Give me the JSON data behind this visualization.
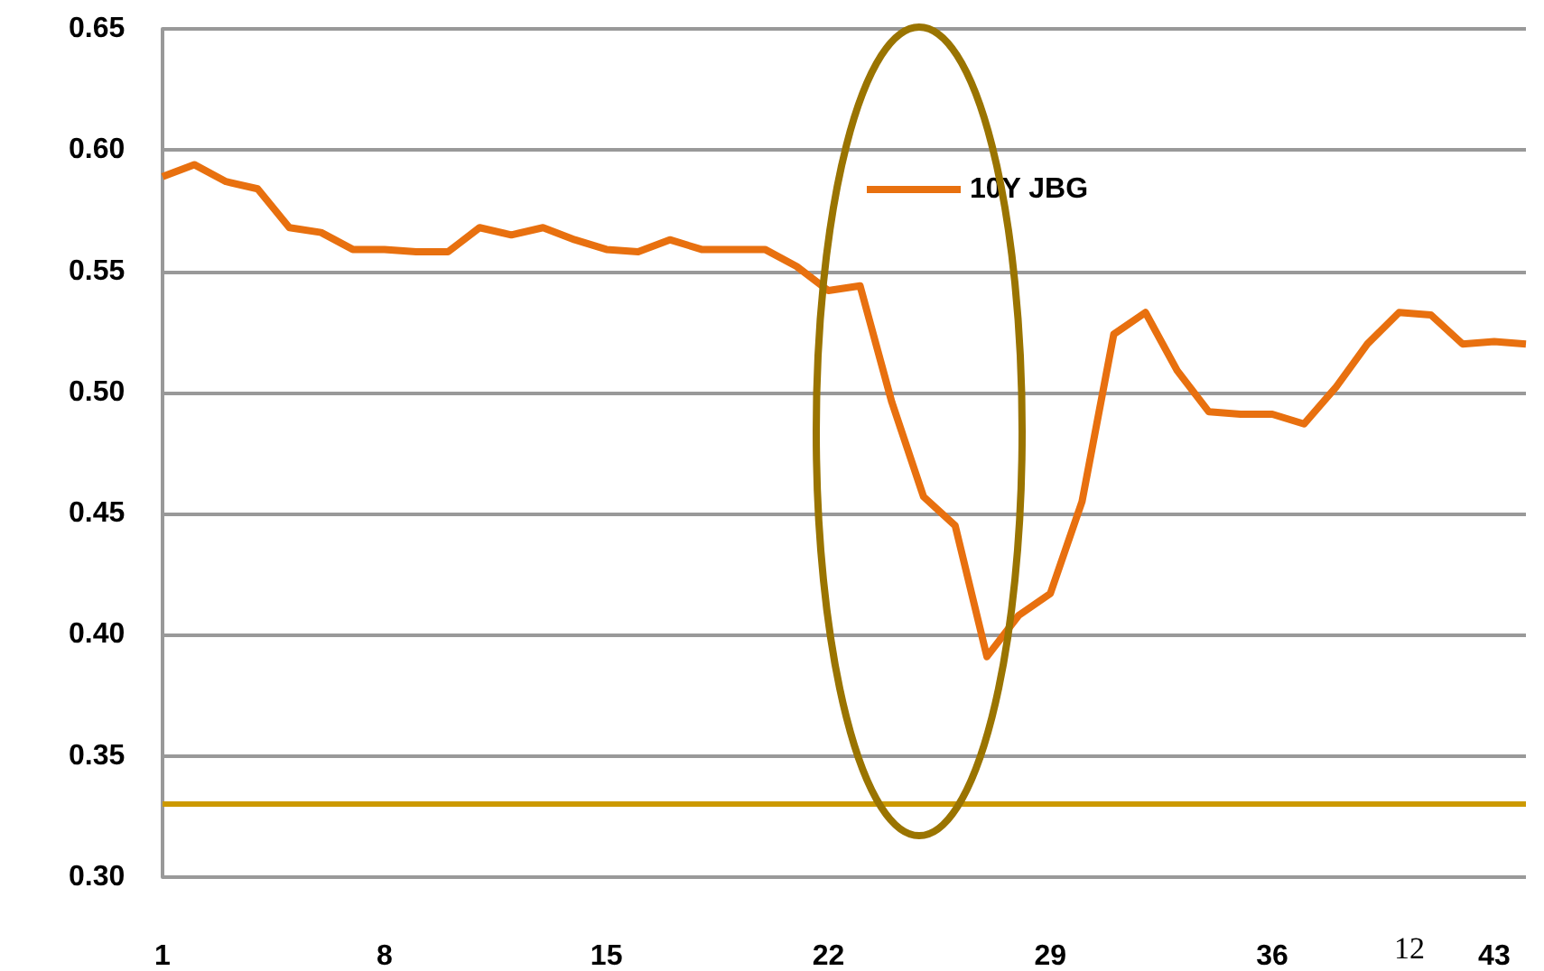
{
  "chart_data": {
    "type": "line",
    "categories": [
      "1",
      null,
      null,
      null,
      null,
      null,
      null,
      "8",
      null,
      null,
      null,
      null,
      null,
      null,
      "15",
      null,
      null,
      null,
      null,
      null,
      null,
      "22",
      null,
      null,
      null,
      null,
      null,
      null,
      "29",
      null,
      null,
      null,
      null,
      null,
      null,
      "36",
      null,
      null,
      null,
      null,
      null,
      null,
      "43",
      null
    ],
    "series": [
      {
        "name": "10Y JBG",
        "color": "#e8700f",
        "values": [
          0.589,
          0.594,
          0.587,
          0.584,
          0.568,
          0.566,
          0.559,
          0.559,
          0.558,
          0.558,
          0.568,
          0.565,
          0.568,
          0.563,
          0.559,
          0.558,
          0.563,
          0.559,
          0.559,
          0.559,
          0.552,
          0.542,
          0.544,
          0.496,
          0.457,
          0.445,
          0.391,
          0.408,
          0.417,
          0.455,
          0.524,
          0.533,
          0.509,
          0.492,
          0.491,
          0.491,
          0.487,
          0.502,
          0.52,
          0.533,
          0.532,
          0.52,
          0.521,
          0.52
        ]
      }
    ],
    "ylim": [
      0.3,
      0.65
    ],
    "yticks": [
      {
        "value": 0.3,
        "label": "0.30"
      },
      {
        "value": 0.35,
        "label": "0.35"
      },
      {
        "value": 0.4,
        "label": "0.40"
      },
      {
        "value": 0.45,
        "label": "0.45"
      },
      {
        "value": 0.5,
        "label": "0.50"
      },
      {
        "value": 0.55,
        "label": "0.55"
      },
      {
        "value": 0.6,
        "label": "0.60"
      },
      {
        "value": 0.65,
        "label": "0.65"
      }
    ],
    "ref_lines": [
      {
        "axis": "y",
        "value": 0.33,
        "color": "#cc9900"
      }
    ],
    "annotations": [
      "12"
    ],
    "grid": "y",
    "legend": "top",
    "marker": "none",
    "line_style": "solid"
  }
}
